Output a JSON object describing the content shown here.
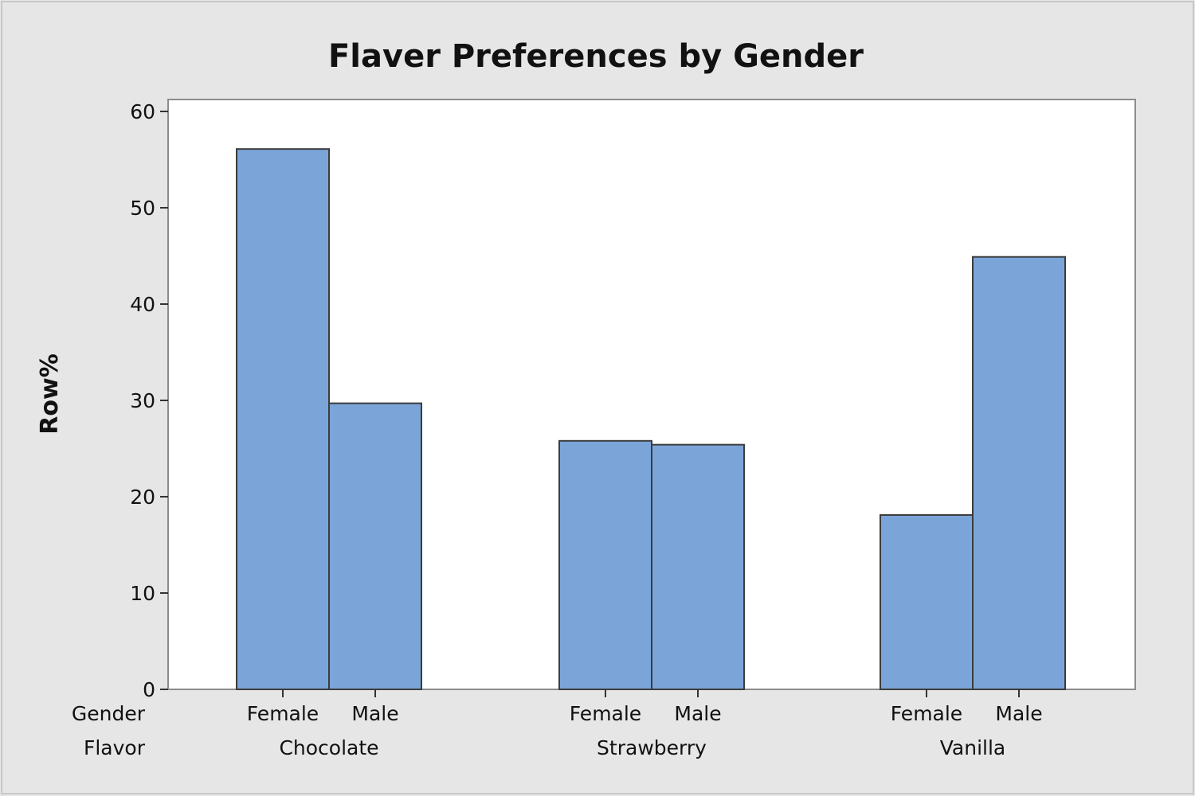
{
  "chart_data": {
    "type": "bar",
    "title": "Flaver Preferences by Gender",
    "ylabel": "Row%",
    "ylim": [
      0,
      60
    ],
    "yticks": [
      0,
      10,
      20,
      30,
      40,
      50,
      60
    ],
    "grid": false,
    "legend": "none",
    "x_levels": [
      {
        "name": "Gender",
        "values": [
          "Female",
          "Male",
          "Female",
          "Male",
          "Female",
          "Male"
        ]
      },
      {
        "name": "Flavor",
        "values": [
          "Chocolate",
          "Strawberry",
          "Vanilla"
        ]
      }
    ],
    "groups": [
      {
        "flavor": "Chocolate",
        "bars": [
          {
            "gender": "Female",
            "value": 56.1
          },
          {
            "gender": "Male",
            "value": 29.7
          }
        ]
      },
      {
        "flavor": "Strawberry",
        "bars": [
          {
            "gender": "Female",
            "value": 25.8
          },
          {
            "gender": "Male",
            "value": 25.4
          }
        ]
      },
      {
        "flavor": "Vanilla",
        "bars": [
          {
            "gender": "Female",
            "value": 18.1
          },
          {
            "gender": "Male",
            "value": 44.9
          }
        ]
      }
    ],
    "colors": {
      "bar_fill": "#7ba5d8",
      "bar_stroke": "#3c3c3c",
      "plot_bg": "#ffffff",
      "figure_bg": "#e6e6e6"
    }
  }
}
